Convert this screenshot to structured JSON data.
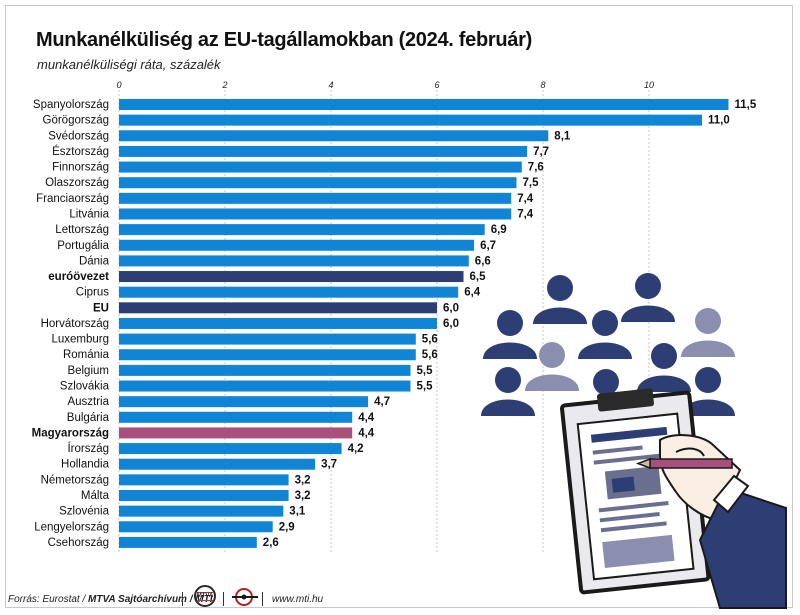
{
  "title": "Munkanélküliség az EU-tagállamokban (2024. február)",
  "subtitle": "munkanélküliségi ráta, százalék",
  "footer": {
    "source_prefix": "Forrás: Eurostat /",
    "source_bold": "MTVA Sajtóarchívum / MTI",
    "logo_mtva": "MTVA",
    "website": "www.mti.hu"
  },
  "colors": {
    "bar": "#1085d6",
    "eurozone": "#2d3e74",
    "eu": "#2d3e74",
    "hungary": "#a94f7c",
    "people_dark": "#2d3e74",
    "people_light": "#8a8fb0",
    "hand_sleeve": "#2d3e74"
  },
  "illustration": {
    "description_icons": [
      "person-icon",
      "clipboard-icon",
      "hand-with-pen-icon"
    ]
  },
  "chart_data": {
    "type": "bar",
    "orientation": "horizontal",
    "categories": [
      "Spanyolország",
      "Görögország",
      "Svédország",
      "Észtország",
      "Finnország",
      "Olaszország",
      "Franciaország",
      "Litvánia",
      "Lettország",
      "Portugália",
      "Dánia",
      "euróövezet",
      "Ciprus",
      "EU",
      "Horvátország",
      "Luxemburg",
      "Románia",
      "Belgium",
      "Szlovákia",
      "Ausztria",
      "Bulgária",
      "Magyarország",
      "Írország",
      "Hollandia",
      "Németország",
      "Málta",
      "Szlovénia",
      "Lengyelország",
      "Csehország"
    ],
    "values": [
      11.5,
      11.0,
      8.1,
      7.7,
      7.6,
      7.5,
      7.4,
      7.4,
      6.9,
      6.7,
      6.6,
      6.5,
      6.4,
      6.0,
      6.0,
      5.6,
      5.6,
      5.5,
      5.5,
      4.7,
      4.4,
      4.4,
      4.2,
      3.7,
      3.2,
      3.2,
      3.1,
      2.9,
      2.6
    ],
    "value_labels": [
      "11,5",
      "11,0",
      "8,1",
      "7,7",
      "7,6",
      "7,5",
      "7,4",
      "7,4",
      "6,9",
      "6,7",
      "6,6",
      "6,5",
      "6,4",
      "6,0",
      "6,0",
      "5,6",
      "5,6",
      "5,5",
      "5,5",
      "4,7",
      "4,4",
      "4,4",
      "4,2",
      "3,7",
      "3,2",
      "3,2",
      "3,1",
      "2,9",
      "2,6"
    ],
    "highlight": {
      "euróövezet": "eurozone",
      "EU": "eu",
      "Magyarország": "hungary"
    },
    "xticks": [
      0,
      2,
      4,
      6,
      8,
      10
    ],
    "xtick_labels": [
      "0",
      "2",
      "4",
      "6",
      "8",
      "10"
    ],
    "xlim": [
      0,
      11.5
    ],
    "grid": true,
    "legend": "none"
  }
}
